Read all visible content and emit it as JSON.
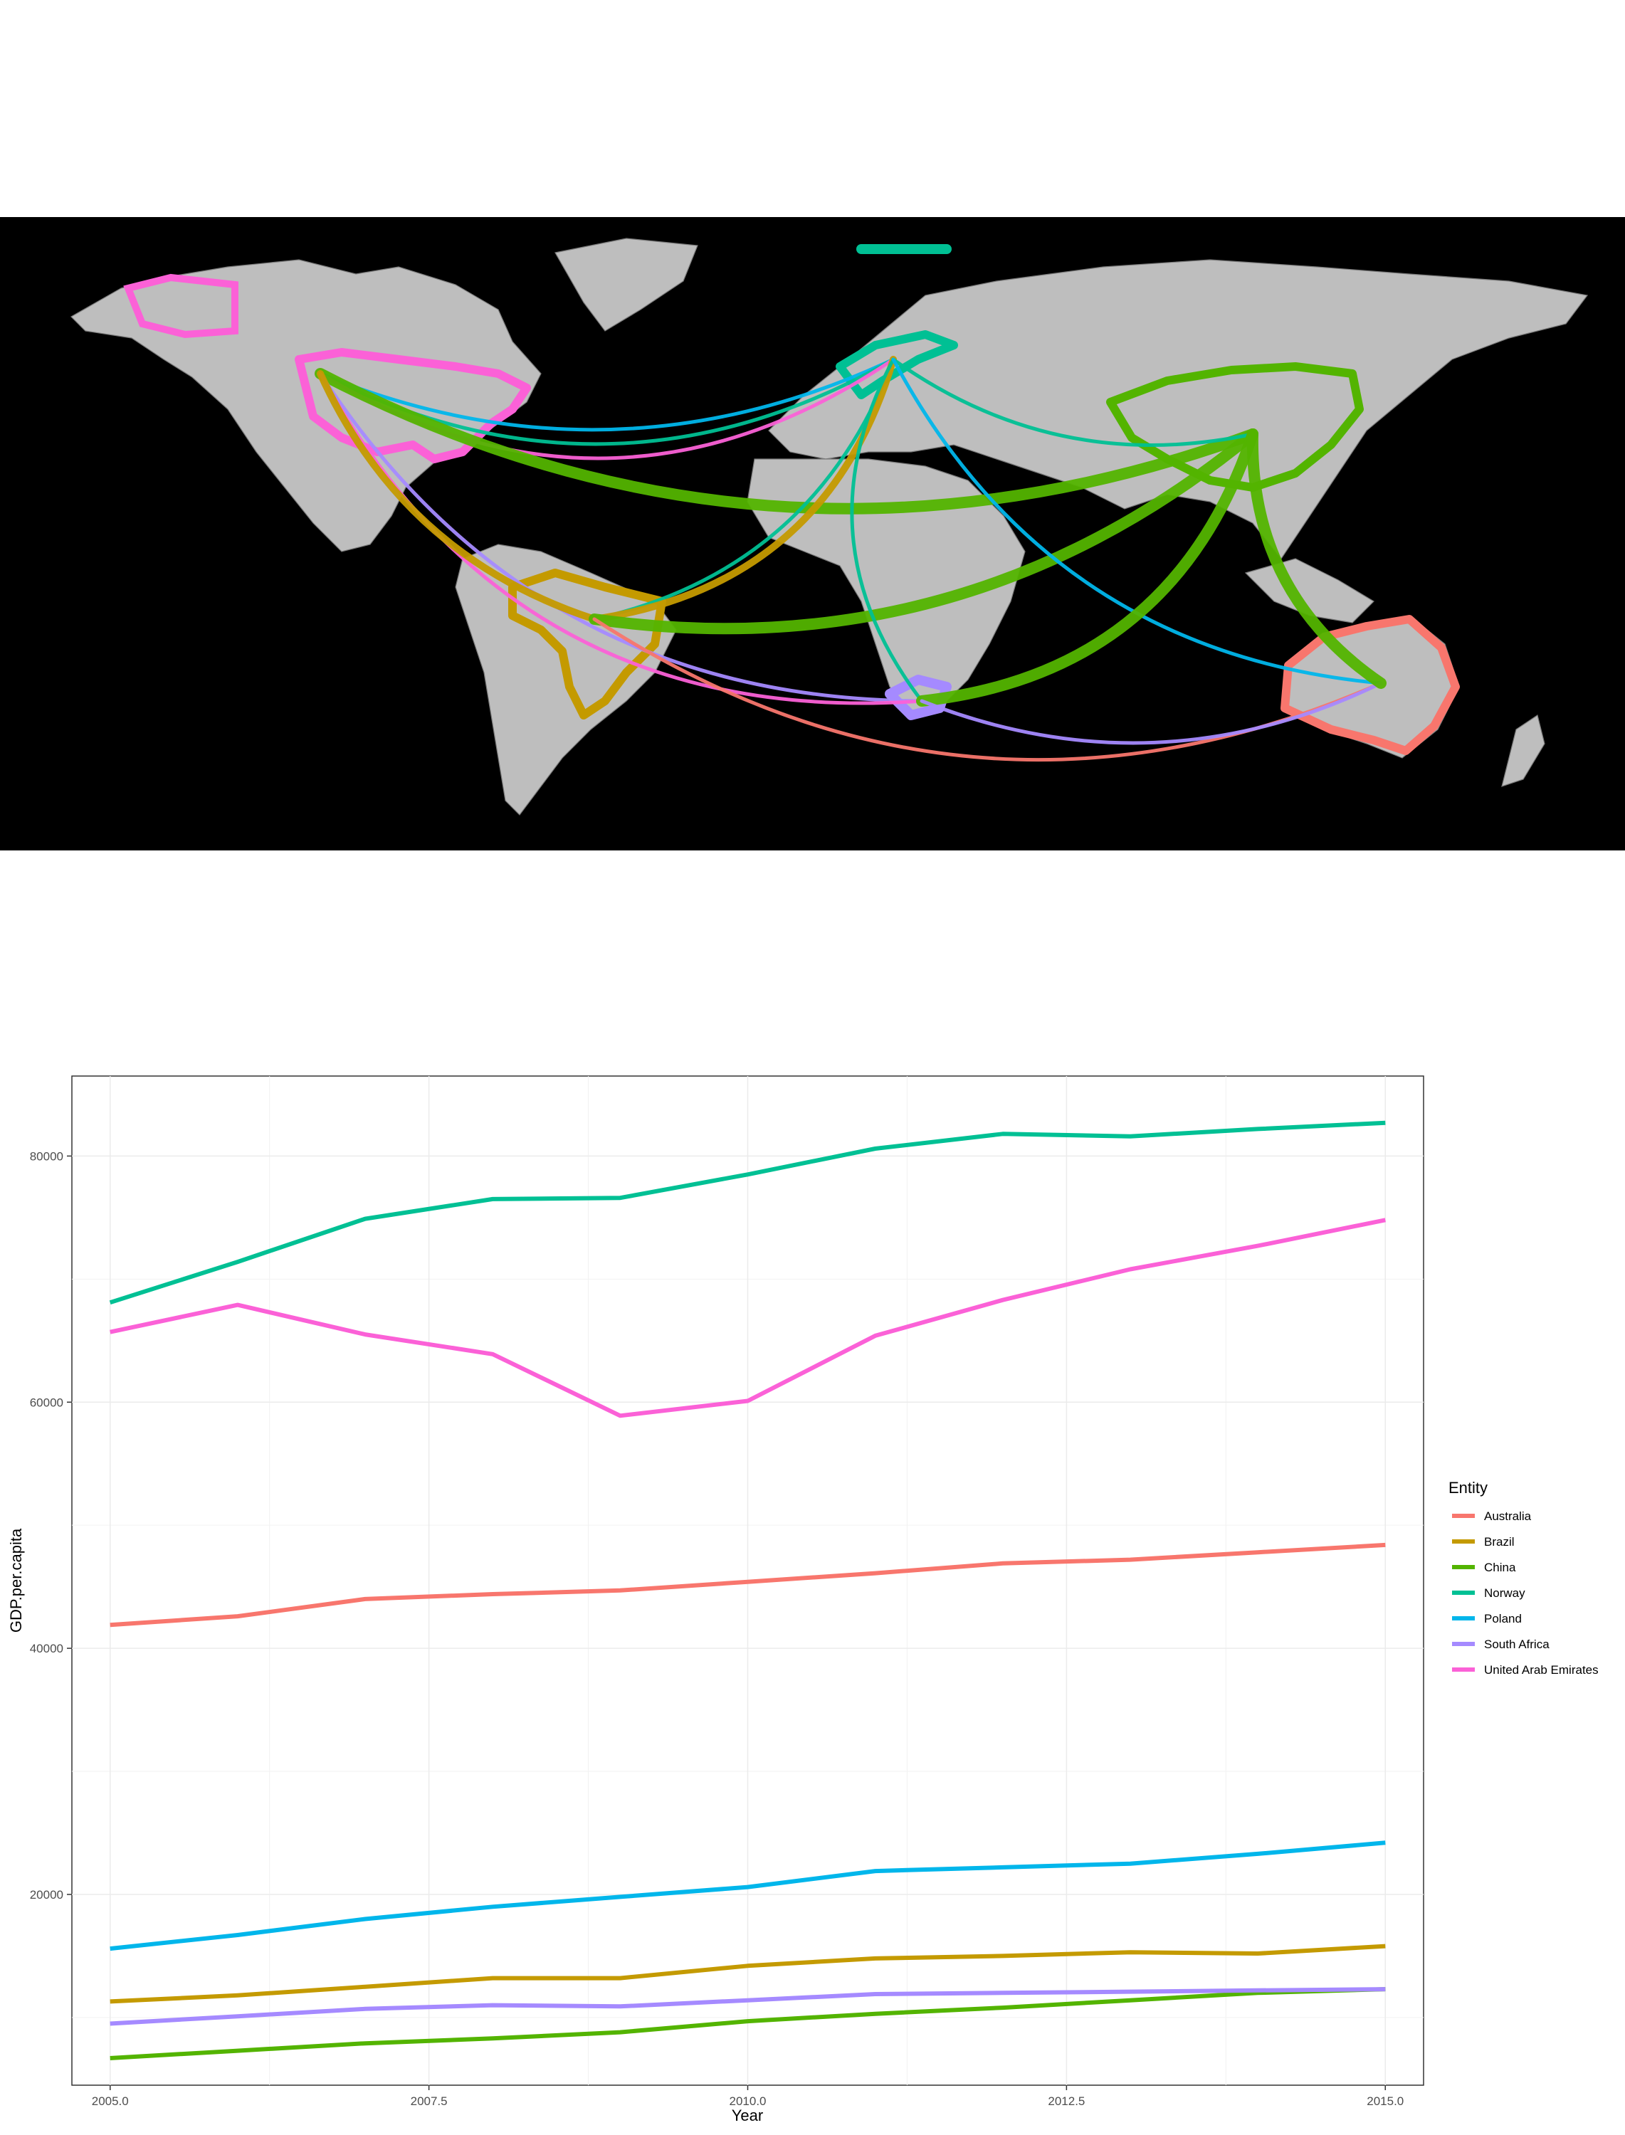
{
  "colors": {
    "Australia": "#F8766D",
    "Brazil": "#C49A00",
    "China": "#53B400",
    "Norway": "#00C094",
    "Poland": "#00B6EB",
    "South Africa": "#A58AFF",
    "United Arab Emirates": "#FB61D7"
  },
  "chart_data": [
    {
      "type": "map",
      "highlighted_countries": [
        "United States",
        "Brazil",
        "Norway",
        "South Africa",
        "Australia",
        "China"
      ],
      "flows": [
        {
          "from": "United States",
          "to": "Norway",
          "entity": "Poland"
        },
        {
          "from": "United States",
          "to": "Norway",
          "entity": "Norway"
        },
        {
          "from": "United States",
          "to": "Norway",
          "entity": "United Arab Emirates"
        },
        {
          "from": "United States",
          "to": "China",
          "entity": "China"
        },
        {
          "from": "United States",
          "to": "South Africa",
          "entity": "South Africa"
        },
        {
          "from": "United States",
          "to": "South Africa",
          "entity": "United Arab Emirates"
        },
        {
          "from": "United States",
          "to": "Brazil",
          "entity": "Brazil"
        },
        {
          "from": "Brazil",
          "to": "Norway",
          "entity": "Norway"
        },
        {
          "from": "Brazil",
          "to": "Norway",
          "entity": "Brazil"
        },
        {
          "from": "Brazil",
          "to": "China",
          "entity": "China"
        },
        {
          "from": "Brazil",
          "to": "Australia",
          "entity": "Australia"
        },
        {
          "from": "Norway",
          "to": "South Africa",
          "entity": "Norway"
        },
        {
          "from": "Norway",
          "to": "China",
          "entity": "Norway"
        },
        {
          "from": "Norway",
          "to": "Australia",
          "entity": "Poland"
        },
        {
          "from": "South Africa",
          "to": "China",
          "entity": "China"
        },
        {
          "from": "South Africa",
          "to": "Australia",
          "entity": "South Africa"
        },
        {
          "from": "China",
          "to": "Australia",
          "entity": "China"
        }
      ]
    },
    {
      "type": "line",
      "xlabel": "Year",
      "ylabel": "GDP.per.capita",
      "xlim": [
        2004.7,
        2015.3
      ],
      "ylim": [
        4500,
        86500
      ],
      "x_ticks": [
        2005.0,
        2007.5,
        2010.0,
        2012.5,
        2015.0
      ],
      "x_tick_labels": [
        "2005.0",
        "2007.5",
        "2010.0",
        "2012.5",
        "2015.0"
      ],
      "y_ticks": [
        20000,
        40000,
        60000,
        80000
      ],
      "y_tick_labels": [
        "20000",
        "40000",
        "60000",
        "80000"
      ],
      "grid": true,
      "legend_title": "Entity",
      "legend_position": "right",
      "x": [
        2005,
        2006,
        2007,
        2008,
        2009,
        2010,
        2011,
        2012,
        2013,
        2014,
        2015
      ],
      "series": [
        {
          "name": "Australia",
          "values": [
            41900,
            42600,
            44000,
            44400,
            44700,
            45400,
            46100,
            46900,
            47200,
            47800,
            48400
          ]
        },
        {
          "name": "Brazil",
          "values": [
            11300,
            11800,
            12500,
            13200,
            13200,
            14200,
            14800,
            15000,
            15300,
            15200,
            15800
          ]
        },
        {
          "name": "China",
          "values": [
            6700,
            7300,
            7900,
            8300,
            8800,
            9700,
            10300,
            10800,
            11400,
            12000,
            12300
          ]
        },
        {
          "name": "Norway",
          "values": [
            68100,
            71400,
            74900,
            76500,
            76600,
            78500,
            80600,
            81800,
            81600,
            82200,
            82700
          ]
        },
        {
          "name": "Poland",
          "values": [
            15600,
            16700,
            18000,
            19000,
            19800,
            20600,
            21900,
            22200,
            22500,
            23300,
            24200
          ]
        },
        {
          "name": "South Africa",
          "values": [
            9500,
            10100,
            10700,
            11000,
            10900,
            11400,
            11900,
            12000,
            12100,
            12200,
            12300
          ]
        },
        {
          "name": "United Arab Emirates",
          "values": [
            65700,
            67900,
            65500,
            63900,
            58900,
            60100,
            65400,
            68300,
            70800,
            72700,
            74800
          ]
        }
      ]
    }
  ]
}
